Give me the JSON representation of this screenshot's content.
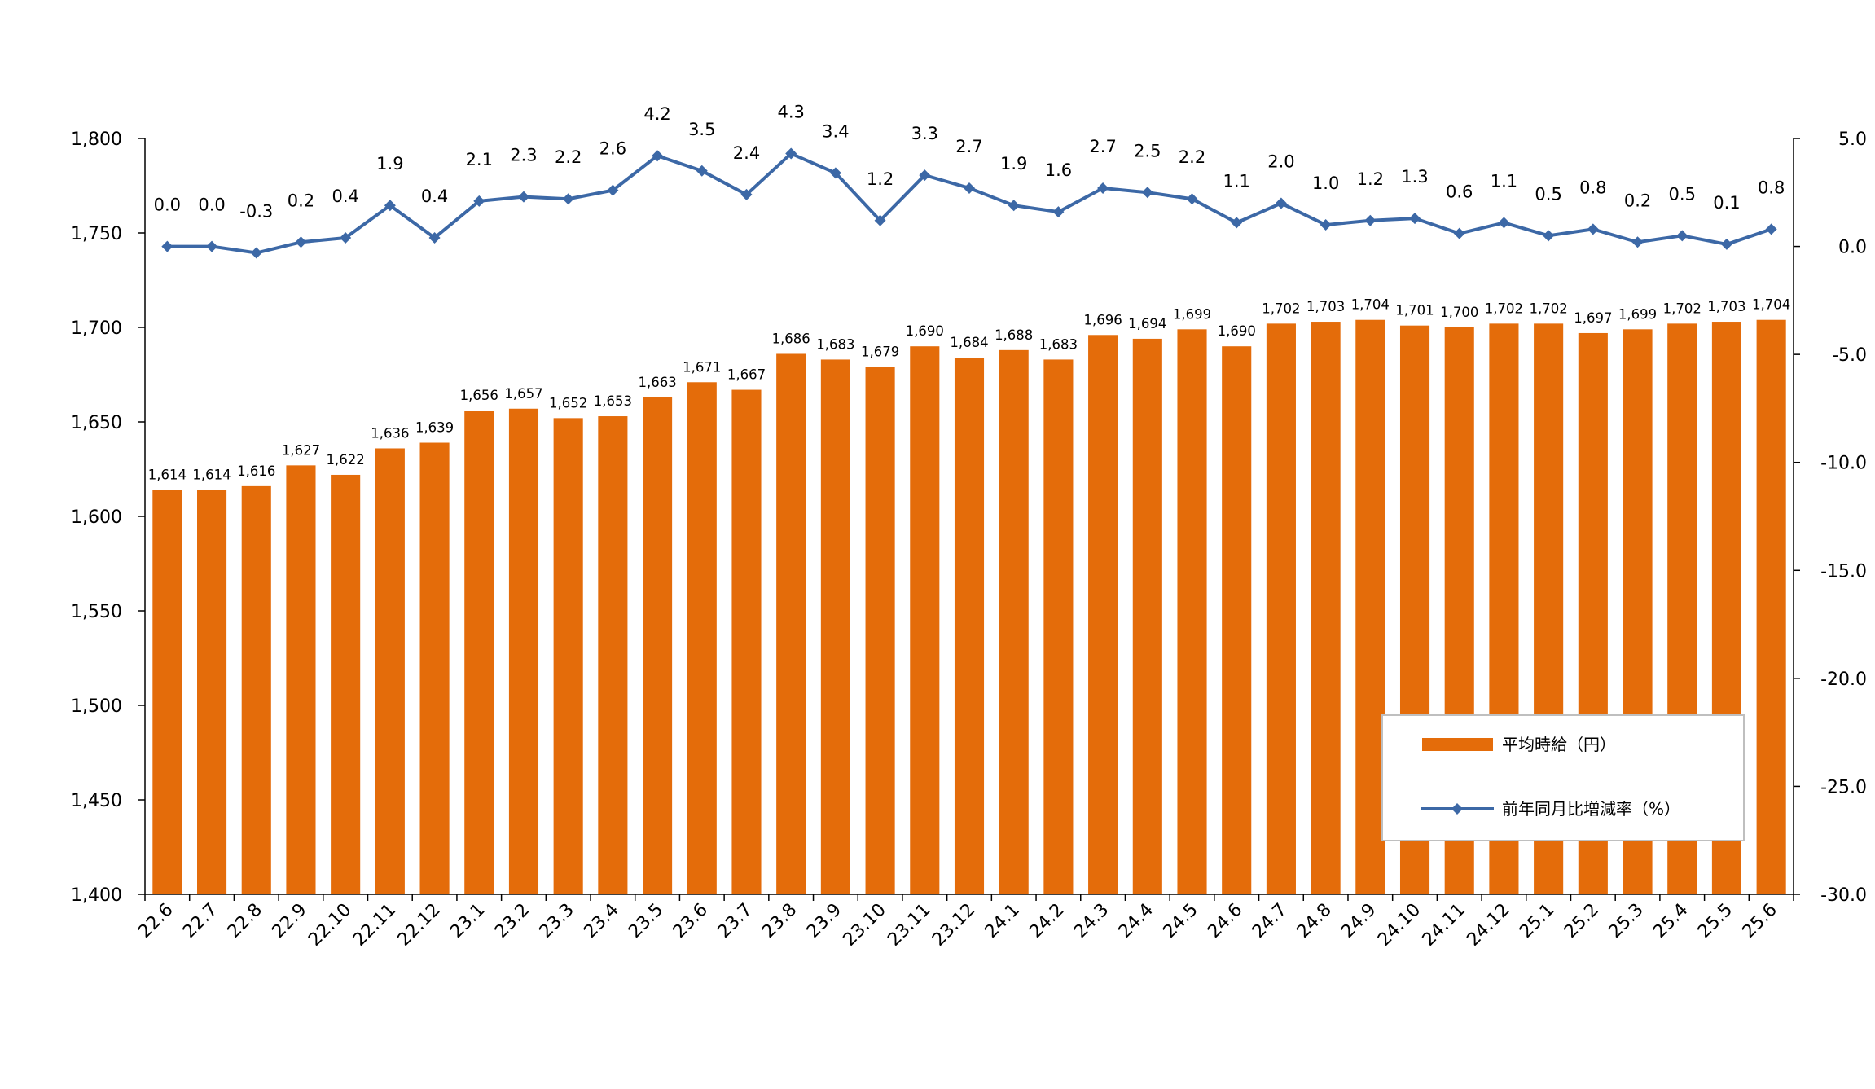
{
  "chart_data": {
    "type": "bar",
    "categories": [
      "22.6",
      "22.7",
      "22.8",
      "22.9",
      "22.10",
      "22.11",
      "22.12",
      "23.1",
      "23.2",
      "23.3",
      "23.4",
      "23.5",
      "23.6",
      "23.7",
      "23.8",
      "23.9",
      "23.10",
      "23.11",
      "23.12",
      "24.1",
      "24.2",
      "24.3",
      "24.4",
      "24.5",
      "24.6",
      "24.7",
      "24.8",
      "24.9",
      "24.10",
      "24.11",
      "24.12",
      "25.1",
      "25.2",
      "25.3",
      "25.4",
      "25.5",
      "25.6"
    ],
    "series": [
      {
        "name": "平均時給（円）",
        "type": "bar",
        "axis": "left",
        "color": "#E46C0A",
        "values": [
          1614,
          1614,
          1616,
          1627,
          1622,
          1636,
          1639,
          1656,
          1657,
          1652,
          1653,
          1663,
          1671,
          1667,
          1686,
          1683,
          1679,
          1690,
          1684,
          1688,
          1683,
          1696,
          1694,
          1699,
          1690,
          1702,
          1703,
          1704,
          1701,
          1700,
          1702,
          1702,
          1697,
          1699,
          1702,
          1703,
          1704
        ],
        "labels": [
          "1,614",
          "1,614",
          "1,616",
          "1,627",
          "1,622",
          "1,636",
          "1,639",
          "1,656",
          "1,657",
          "1,652",
          "1,653",
          "1,663",
          "1,671",
          "1,667",
          "1,686",
          "1,683",
          "1,679",
          "1,690",
          "1,684",
          "1,688",
          "1,683",
          "1,696",
          "1,694",
          "1,699",
          "1,690",
          "1,702",
          "1,703",
          "1,704",
          "1,701",
          "1,700",
          "1,702",
          "1,702",
          "1,697",
          "1,699",
          "1,702",
          "1,703",
          "1,704"
        ]
      },
      {
        "name": "前年同月比増減率（%）",
        "type": "line",
        "axis": "right",
        "color": "#3C68A6",
        "negative_label_color": "#FF0000",
        "values": [
          0.0,
          0.0,
          -0.3,
          0.2,
          0.4,
          1.9,
          0.4,
          2.1,
          2.3,
          2.2,
          2.6,
          4.2,
          3.5,
          2.4,
          4.3,
          3.4,
          1.2,
          3.3,
          2.7,
          1.9,
          1.6,
          2.7,
          2.5,
          2.2,
          1.1,
          2.0,
          1.0,
          1.2,
          1.3,
          0.6,
          1.1,
          0.5,
          0.8,
          0.2,
          0.5,
          0.1,
          0.8
        ],
        "labels": [
          "0.0",
          "0.0",
          "-0.3",
          "0.2",
          "0.4",
          "1.9",
          "0.4",
          "2.1",
          "2.3",
          "2.2",
          "2.6",
          "4.2",
          "3.5",
          "2.4",
          "4.3",
          "3.4",
          "1.2",
          "3.3",
          "2.7",
          "1.9",
          "1.6",
          "2.7",
          "2.5",
          "2.2",
          "1.1",
          "2.0",
          "1.0",
          "1.2",
          "1.3",
          "0.6",
          "1.1",
          "0.5",
          "0.8",
          "0.2",
          "0.5",
          "0.1",
          "0.8"
        ]
      }
    ],
    "y_left": {
      "range": [
        1400,
        1800
      ],
      "ticks": [
        1400,
        1450,
        1500,
        1550,
        1600,
        1650,
        1700,
        1750,
        1800
      ],
      "tick_labels": [
        "1,400",
        "1,450",
        "1,500",
        "1,550",
        "1,600",
        "1,650",
        "1,700",
        "1,750",
        "1,800"
      ]
    },
    "y_right": {
      "range": [
        -30,
        5
      ],
      "ticks": [
        -30,
        -25,
        -20,
        -15,
        -10,
        -5,
        0,
        5
      ],
      "tick_labels": [
        "-30.0",
        "-25.0",
        "-20.0",
        "-15.0",
        "-10.0",
        "-5.0",
        "0.0",
        "5.0"
      ],
      "color": "#3C68A6"
    },
    "title": "",
    "xlabel": "",
    "ylabel": "",
    "grid": false,
    "legend": {
      "position": "bottom-right",
      "entries": [
        "平均時給（円）",
        "前年同月比増減率（%）"
      ]
    }
  }
}
